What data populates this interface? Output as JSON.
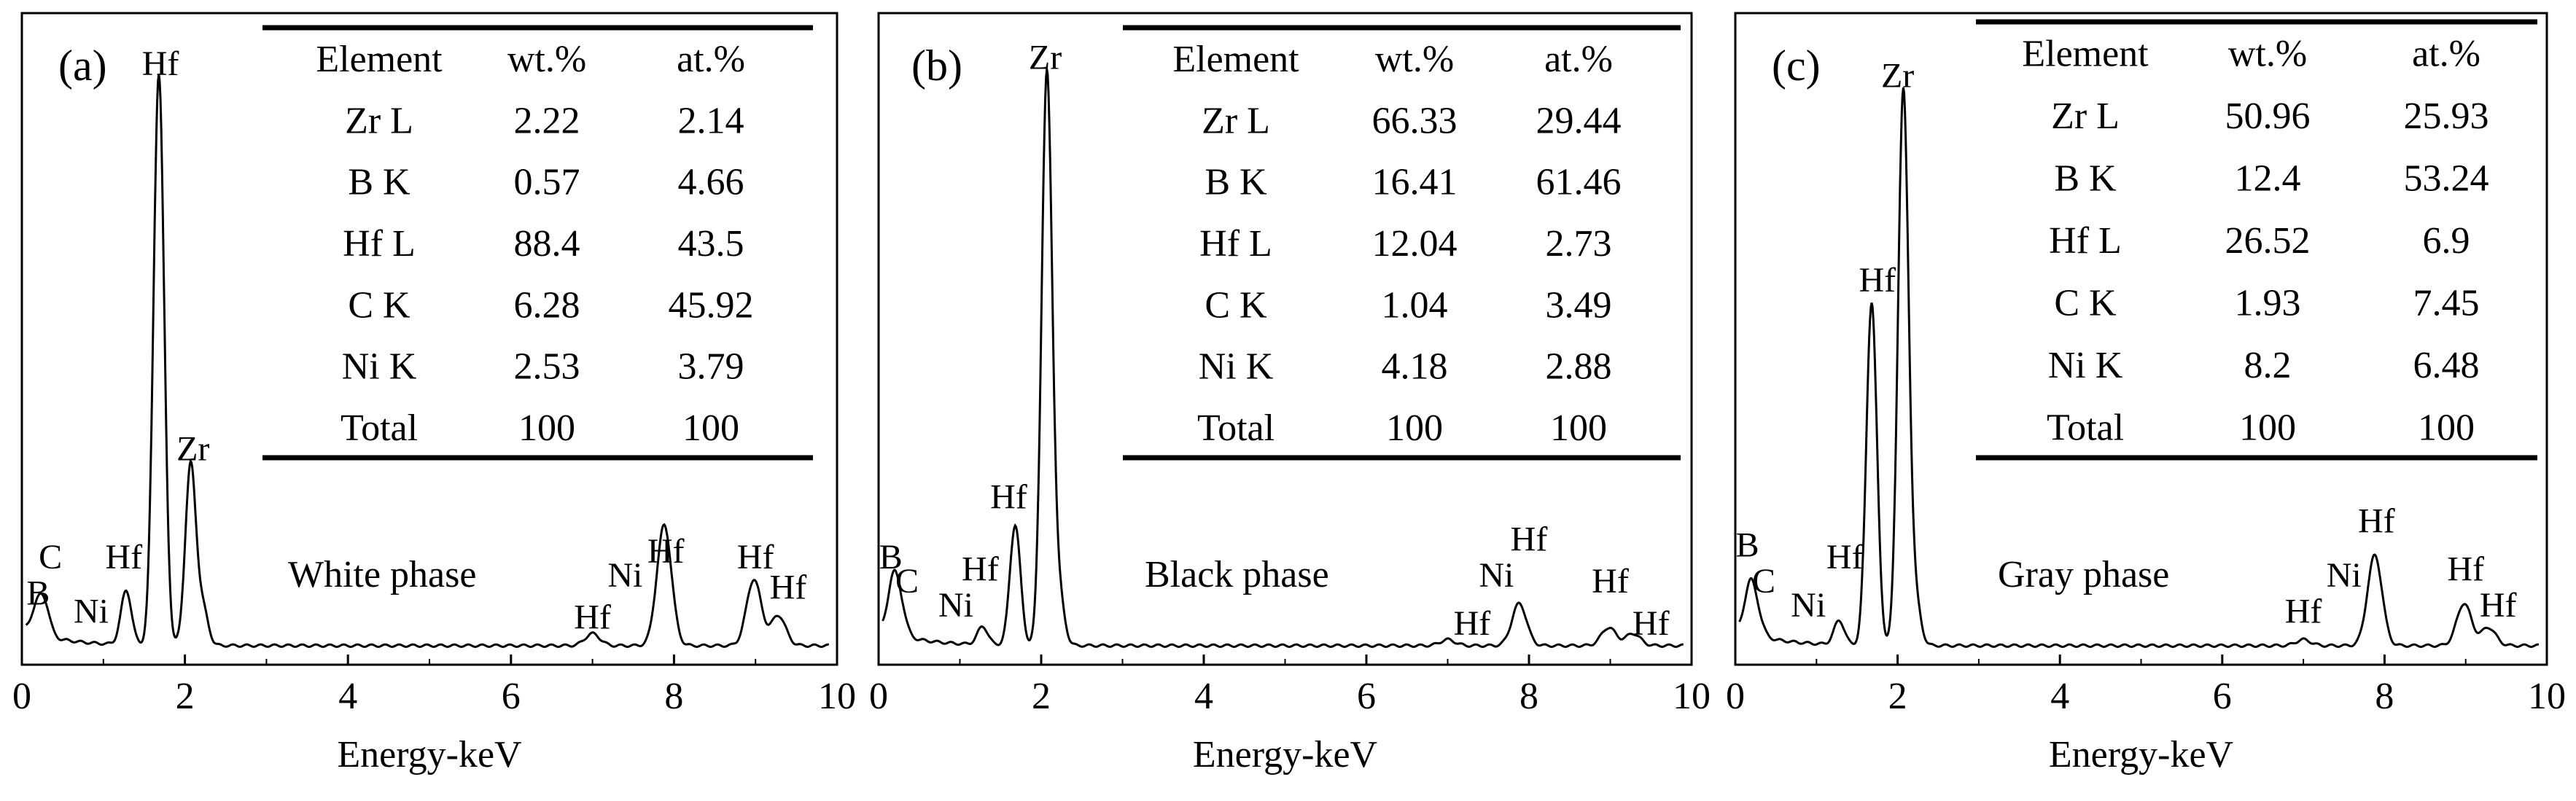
{
  "chart_data": [
    {
      "type": "line",
      "panel_label": "(a)",
      "annotation": "White phase",
      "xlabel": "Energy-keV",
      "xlim": [
        0,
        10
      ],
      "ylim": [
        0,
        100
      ],
      "xticks": [
        "0",
        "2",
        "4",
        "6",
        "8",
        "10"
      ],
      "series": [
        {
          "name": "EDS spectrum",
          "peaks": [
            [
              0.18,
              4
            ],
            [
              0.28,
              5
            ],
            [
              1.28,
              9
            ],
            [
              1.68,
              95
            ],
            [
              2.07,
              30
            ],
            [
              2.22,
              6
            ],
            [
              7.0,
              2
            ],
            [
              7.88,
              20
            ],
            [
              8.98,
              11
            ],
            [
              9.28,
              5
            ]
          ]
        }
      ],
      "peak_labels": [
        {
          "text": "B",
          "x": 0.2,
          "y": 9
        },
        {
          "text": "C",
          "x": 0.35,
          "y": 15
        },
        {
          "text": "Ni",
          "x": 0.85,
          "y": 6
        },
        {
          "text": "Hf",
          "x": 1.25,
          "y": 15
        },
        {
          "text": "Hf",
          "x": 1.7,
          "y": 97
        },
        {
          "text": "Zr",
          "x": 2.1,
          "y": 33
        },
        {
          "text": "Hf",
          "x": 7.0,
          "y": 5
        },
        {
          "text": "Ni",
          "x": 7.4,
          "y": 12
        },
        {
          "text": "Hf",
          "x": 7.9,
          "y": 16
        },
        {
          "text": "Hf",
          "x": 9.0,
          "y": 15
        },
        {
          "text": "Hf",
          "x": 9.4,
          "y": 10
        }
      ],
      "table": {
        "headers": [
          "Element",
          "wt.%",
          "at.%"
        ],
        "rows": [
          [
            "Zr L",
            "2.22",
            "2.14"
          ],
          [
            "B K",
            "0.57",
            "4.66"
          ],
          [
            "Hf L",
            "88.4",
            "43.5"
          ],
          [
            "C K",
            "6.28",
            "45.92"
          ],
          [
            "Ni K",
            "2.53",
            "3.79"
          ],
          [
            "Total",
            "100",
            "100"
          ]
        ]
      }
    },
    {
      "type": "line",
      "panel_label": "(b)",
      "annotation": "Black phase",
      "xlabel": "Energy-keV",
      "xlim": [
        0,
        10
      ],
      "ylim": [
        0,
        100
      ],
      "xticks": [
        "0",
        "2",
        "4",
        "6",
        "8",
        "10"
      ],
      "series": [
        {
          "name": "EDS spectrum",
          "peaks": [
            [
              0.18,
              9
            ],
            [
              0.28,
              4
            ],
            [
              1.28,
              3
            ],
            [
              1.68,
              20
            ],
            [
              2.07,
              95
            ],
            [
              2.22,
              8
            ],
            [
              7.0,
              1
            ],
            [
              7.88,
              7
            ],
            [
              8.98,
              3
            ],
            [
              9.28,
              2
            ]
          ]
        }
      ],
      "peak_labels": [
        {
          "text": "B",
          "x": 0.15,
          "y": 15
        },
        {
          "text": "C",
          "x": 0.35,
          "y": 11
        },
        {
          "text": "Ni",
          "x": 0.95,
          "y": 7
        },
        {
          "text": "Hf",
          "x": 1.25,
          "y": 13
        },
        {
          "text": "Hf",
          "x": 1.6,
          "y": 25
        },
        {
          "text": "Zr",
          "x": 2.05,
          "y": 98
        },
        {
          "text": "Hf",
          "x": 7.3,
          "y": 4
        },
        {
          "text": "Ni",
          "x": 7.6,
          "y": 12
        },
        {
          "text": "Hf",
          "x": 8.0,
          "y": 18
        },
        {
          "text": "Hf",
          "x": 9.0,
          "y": 11
        },
        {
          "text": "Hf",
          "x": 9.5,
          "y": 4
        }
      ],
      "table": {
        "headers": [
          "Element",
          "wt.%",
          "at.%"
        ],
        "rows": [
          [
            "Zr L",
            "66.33",
            "29.44"
          ],
          [
            "B K",
            "16.41",
            "61.46"
          ],
          [
            "Hf L",
            "12.04",
            "2.73"
          ],
          [
            "C K",
            "1.04",
            "3.49"
          ],
          [
            "Ni K",
            "4.18",
            "2.88"
          ],
          [
            "Total",
            "100",
            "100"
          ]
        ]
      }
    },
    {
      "type": "line",
      "panel_label": "(c)",
      "annotation": "Gray phase",
      "xlabel": "Energy-keV",
      "xlim": [
        0,
        10
      ],
      "ylim": [
        0,
        100
      ],
      "xticks": [
        "0",
        "2",
        "4",
        "6",
        "8",
        "10"
      ],
      "series": [
        {
          "name": "EDS spectrum",
          "peaks": [
            [
              0.18,
              8
            ],
            [
              0.28,
              3
            ],
            [
              1.28,
              4
            ],
            [
              1.68,
              57
            ],
            [
              2.07,
              92
            ],
            [
              2.22,
              7
            ],
            [
              7.0,
              1
            ],
            [
              7.88,
              15
            ],
            [
              8.98,
              7
            ],
            [
              9.28,
              3
            ]
          ]
        }
      ],
      "peak_labels": [
        {
          "text": "B",
          "x": 0.15,
          "y": 17
        },
        {
          "text": "C",
          "x": 0.35,
          "y": 11
        },
        {
          "text": "Ni",
          "x": 0.9,
          "y": 7
        },
        {
          "text": "Hf",
          "x": 1.35,
          "y": 15
        },
        {
          "text": "Hf",
          "x": 1.75,
          "y": 61
        },
        {
          "text": "Zr",
          "x": 2.0,
          "y": 95
        },
        {
          "text": "Hf",
          "x": 7.0,
          "y": 6
        },
        {
          "text": "Ni",
          "x": 7.5,
          "y": 12
        },
        {
          "text": "Hf",
          "x": 7.9,
          "y": 21
        },
        {
          "text": "Hf",
          "x": 9.0,
          "y": 13
        },
        {
          "text": "Hf",
          "x": 9.4,
          "y": 7
        }
      ],
      "table": {
        "headers": [
          "Element",
          "wt.%",
          "at.%"
        ],
        "rows": [
          [
            "Zr L",
            "50.96",
            "25.93"
          ],
          [
            "B K",
            "12.4",
            "53.24"
          ],
          [
            "Hf L",
            "26.52",
            "6.9"
          ],
          [
            "C K",
            "1.93",
            "7.45"
          ],
          [
            "Ni K",
            "8.2",
            "6.48"
          ],
          [
            "Total",
            "100",
            "100"
          ]
        ]
      }
    }
  ]
}
